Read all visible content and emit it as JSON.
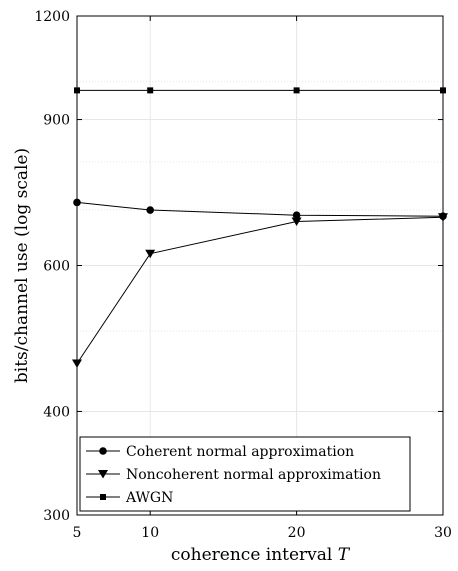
{
  "chart_data": {
    "type": "line",
    "xlabel": "coherence interval",
    "xlabel_symbol": "T",
    "ylabel": "bits/channel use (log scale)",
    "yscale": "log",
    "xlim": [
      5,
      30
    ],
    "ylim": [
      300,
      1200
    ],
    "x_ticks": [
      5,
      10,
      20,
      30
    ],
    "y_ticks": [
      300,
      400,
      600,
      900,
      1200
    ],
    "y_minor_grid": [
      500,
      700,
      800,
      1000
    ],
    "grid": true,
    "legend_position": "bottom-left",
    "x": [
      5,
      10,
      20,
      30
    ],
    "series": [
      {
        "name": "Coherent normal approximation",
        "marker": "circle",
        "values": [
          715,
          700,
          690,
          688
        ]
      },
      {
        "name": "Noncoherent normal approximation",
        "marker": "triangle-down",
        "values": [
          457,
          620,
          678,
          686
        ]
      },
      {
        "name": "AWGN",
        "marker": "square",
        "values": [
          976,
          976,
          976,
          976
        ]
      }
    ],
    "colors": {
      "line": "#000000",
      "grid": "#e6e6e6",
      "axis": "#000000"
    }
  }
}
